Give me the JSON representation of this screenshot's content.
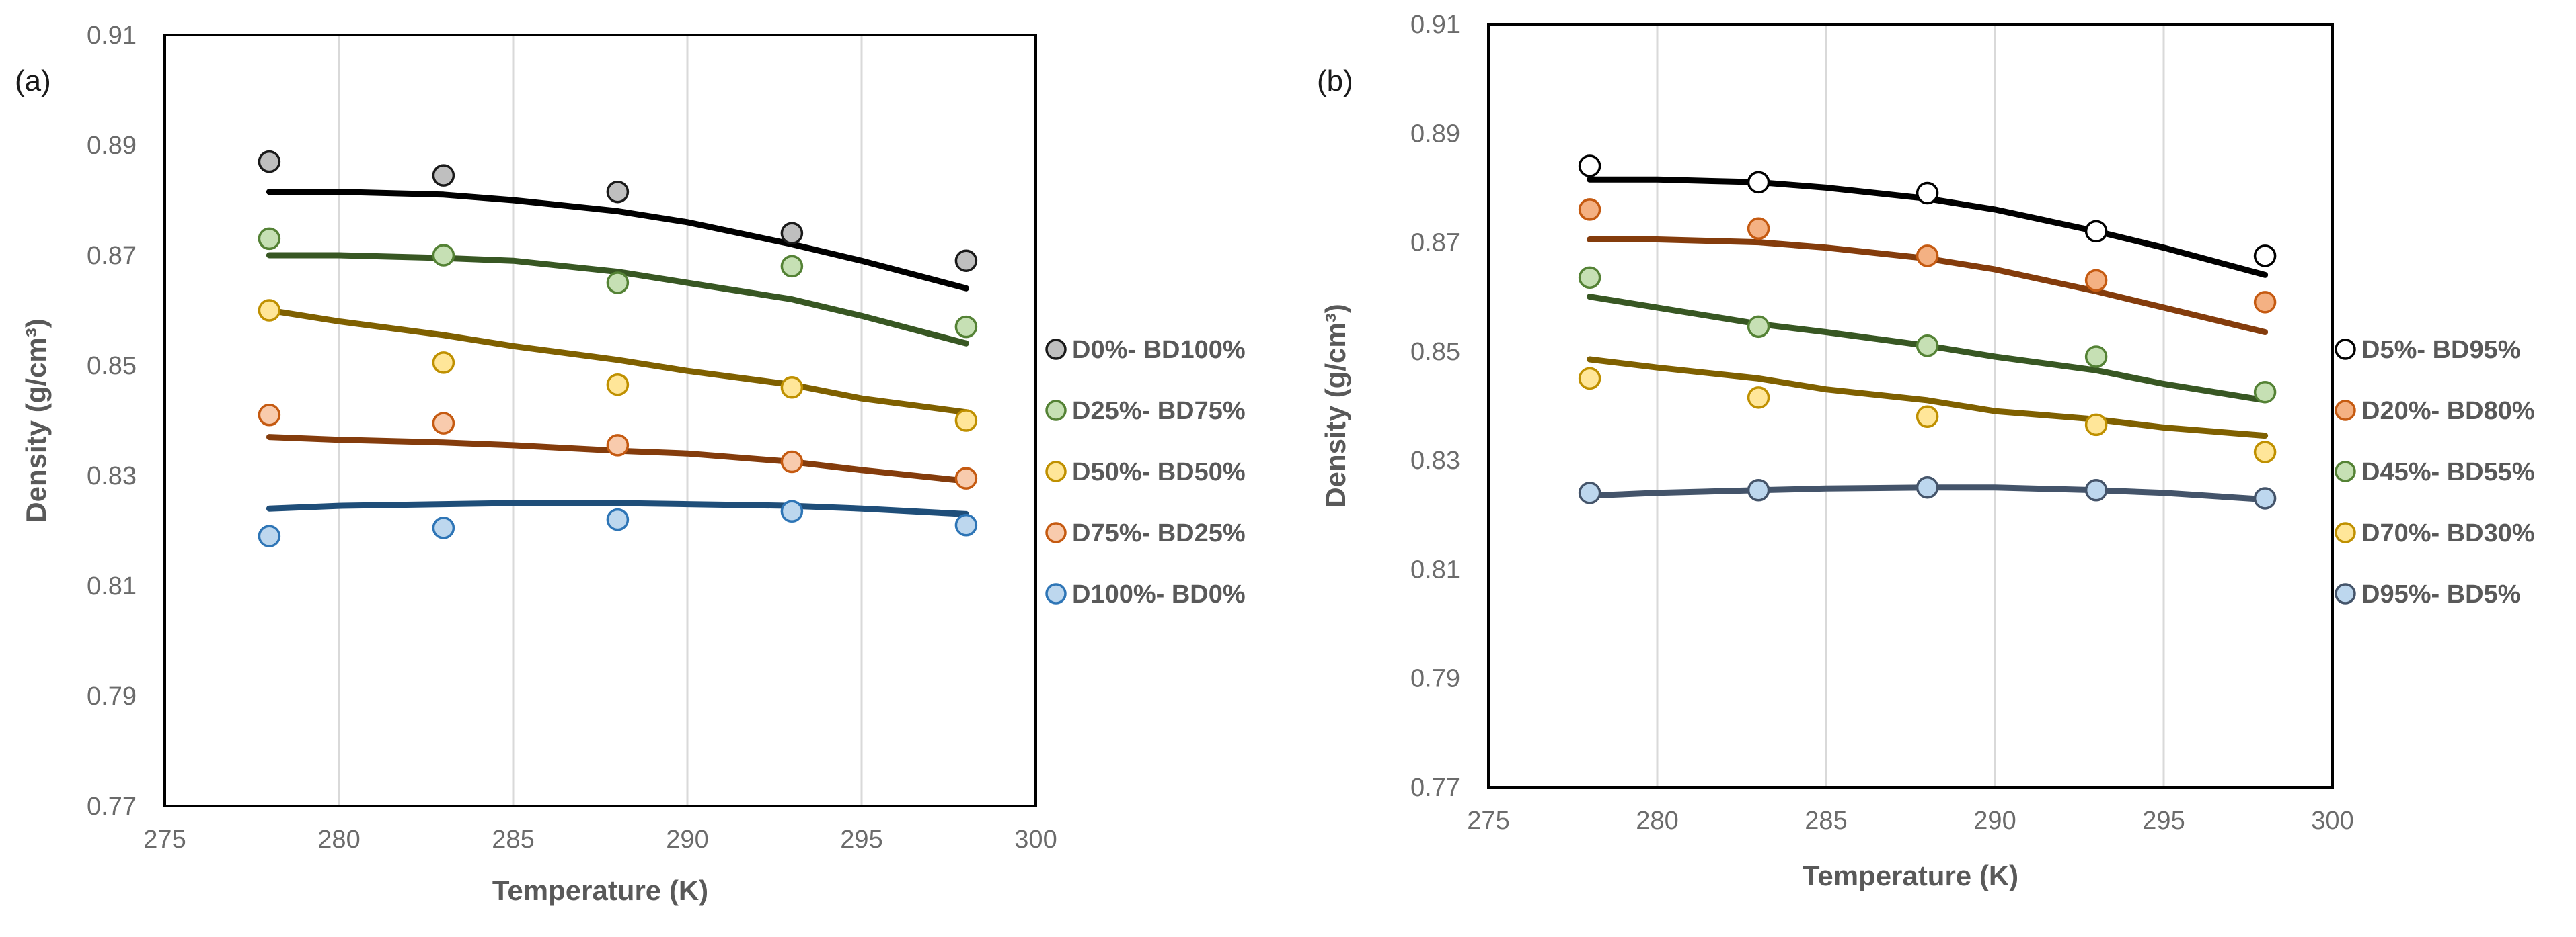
{
  "chart_data": [
    {
      "type": "line",
      "panel_label": "(a)",
      "xlabel": "Temperature (K)",
      "ylabel": "Density (g/cm³)",
      "xlim": [
        275,
        300
      ],
      "ylim": [
        0.77,
        0.91
      ],
      "x_ticks": [
        "275",
        "280",
        "285",
        "290",
        "295",
        "300"
      ],
      "y_ticks": [
        "0.77",
        "0.79",
        "0.81",
        "0.83",
        "0.85",
        "0.87",
        "0.89",
        "0.91"
      ],
      "x_tick_values": [
        275,
        280,
        285,
        290,
        295,
        300
      ],
      "y_tick_values": [
        0.77,
        0.79,
        0.81,
        0.83,
        0.85,
        0.87,
        0.89,
        0.91
      ],
      "grid": "vertical",
      "legend_position": "right",
      "x": [
        278,
        283,
        288,
        293,
        298
      ],
      "series": [
        {
          "name": "D0%- BD100%",
          "line_color": "#000000",
          "marker_fill": "#bfbfbf",
          "marker_edge": "#1a1a1a",
          "points": [
            0.887,
            0.8845,
            0.8815,
            0.874,
            0.869
          ],
          "curve_x": [
            278,
            280,
            283,
            285,
            288,
            290,
            293,
            295,
            298
          ],
          "curve_y": [
            0.8815,
            0.8815,
            0.881,
            0.88,
            0.878,
            0.876,
            0.872,
            0.869,
            0.864
          ]
        },
        {
          "name": "D25%- BD75%",
          "line_color": "#385723",
          "marker_fill": "#c6e0b4",
          "marker_edge": "#548235",
          "points": [
            0.873,
            0.87,
            0.865,
            0.868,
            0.857
          ],
          "curve_x": [
            278,
            280,
            283,
            285,
            288,
            290,
            293,
            295,
            298
          ],
          "curve_y": [
            0.87,
            0.87,
            0.8695,
            0.869,
            0.867,
            0.865,
            0.862,
            0.859,
            0.854
          ]
        },
        {
          "name": "D50%- BD50%",
          "line_color": "#7f6000",
          "marker_fill": "#ffe699",
          "marker_edge": "#bf9000",
          "points": [
            0.86,
            0.8505,
            0.8465,
            0.846,
            0.84
          ],
          "curve_x": [
            278,
            280,
            283,
            285,
            288,
            290,
            293,
            295,
            298
          ],
          "curve_y": [
            0.86,
            0.858,
            0.8555,
            0.8535,
            0.851,
            0.849,
            0.8465,
            0.844,
            0.8415
          ]
        },
        {
          "name": "D75%- BD25%",
          "line_color": "#843c0c",
          "marker_fill": "#f8cbad",
          "marker_edge": "#c55a11",
          "points": [
            0.841,
            0.8395,
            0.8355,
            0.8325,
            0.8295
          ],
          "curve_x": [
            278,
            280,
            283,
            285,
            288,
            290,
            293,
            295,
            298
          ],
          "curve_y": [
            0.837,
            0.8365,
            0.836,
            0.8355,
            0.8345,
            0.834,
            0.8325,
            0.831,
            0.829
          ]
        },
        {
          "name": "D100%- BD0%",
          "line_color": "#1f4e79",
          "marker_fill": "#bdd7ee",
          "marker_edge": "#2e75b6",
          "points": [
            0.819,
            0.8205,
            0.822,
            0.8235,
            0.821
          ],
          "curve_x": [
            278,
            280,
            283,
            285,
            288,
            290,
            293,
            295,
            298
          ],
          "curve_y": [
            0.824,
            0.8245,
            0.8248,
            0.825,
            0.825,
            0.8248,
            0.8245,
            0.824,
            0.823
          ]
        }
      ]
    },
    {
      "type": "line",
      "panel_label": "(b)",
      "xlabel": "Temperature (K)",
      "ylabel": "Density (g/cm³)",
      "xlim": [
        275,
        300
      ],
      "ylim": [
        0.77,
        0.91
      ],
      "x_ticks": [
        "275",
        "280",
        "285",
        "290",
        "295",
        "300"
      ],
      "y_ticks": [
        "0.77",
        "0.79",
        "0.81",
        "0.83",
        "0.85",
        "0.87",
        "0.89",
        "0.91"
      ],
      "x_tick_values": [
        275,
        280,
        285,
        290,
        295,
        300
      ],
      "y_tick_values": [
        0.77,
        0.79,
        0.81,
        0.83,
        0.85,
        0.87,
        0.89,
        0.91
      ],
      "grid": "vertical",
      "legend_position": "right",
      "x": [
        278,
        283,
        288,
        293,
        298
      ],
      "series": [
        {
          "name": "D5%- BD95%",
          "line_color": "#000000",
          "marker_fill": "#ffffff",
          "marker_edge": "#000000",
          "points": [
            0.884,
            0.881,
            0.879,
            0.872,
            0.8675
          ],
          "curve_x": [
            278,
            280,
            283,
            285,
            288,
            290,
            293,
            295,
            298
          ],
          "curve_y": [
            0.8815,
            0.8815,
            0.881,
            0.88,
            0.878,
            0.876,
            0.872,
            0.869,
            0.864
          ]
        },
        {
          "name": "D20%- BD80%",
          "line_color": "#843c0c",
          "marker_fill": "#f4b183",
          "marker_edge": "#c55a11",
          "points": [
            0.876,
            0.8725,
            0.8675,
            0.863,
            0.859
          ],
          "curve_x": [
            278,
            280,
            283,
            285,
            288,
            290,
            293,
            295,
            298
          ],
          "curve_y": [
            0.8705,
            0.8705,
            0.87,
            0.869,
            0.867,
            0.865,
            0.861,
            0.858,
            0.8535
          ]
        },
        {
          "name": "D45%- BD55%",
          "line_color": "#385723",
          "marker_fill": "#c6e0b4",
          "marker_edge": "#548235",
          "points": [
            0.8635,
            0.8545,
            0.851,
            0.849,
            0.8425
          ],
          "curve_x": [
            278,
            280,
            283,
            285,
            288,
            290,
            293,
            295,
            298
          ],
          "curve_y": [
            0.86,
            0.858,
            0.855,
            0.8535,
            0.851,
            0.849,
            0.8465,
            0.844,
            0.841
          ]
        },
        {
          "name": "D70%- BD30%",
          "line_color": "#7f6000",
          "marker_fill": "#ffe699",
          "marker_edge": "#bf9000",
          "points": [
            0.845,
            0.8415,
            0.838,
            0.8365,
            0.8315
          ],
          "curve_x": [
            278,
            280,
            283,
            285,
            288,
            290,
            293,
            295,
            298
          ],
          "curve_y": [
            0.8485,
            0.847,
            0.845,
            0.843,
            0.841,
            0.839,
            0.8375,
            0.836,
            0.8345
          ]
        },
        {
          "name": "D95%- BD5%",
          "line_color": "#44546a",
          "marker_fill": "#bdd7ee",
          "marker_edge": "#44546a",
          "points": [
            0.824,
            0.8245,
            0.825,
            0.8245,
            0.823
          ],
          "curve_x": [
            278,
            280,
            283,
            285,
            288,
            290,
            293,
            295,
            298
          ],
          "curve_y": [
            0.8235,
            0.824,
            0.8245,
            0.8248,
            0.825,
            0.825,
            0.8245,
            0.824,
            0.8228
          ]
        }
      ]
    }
  ]
}
